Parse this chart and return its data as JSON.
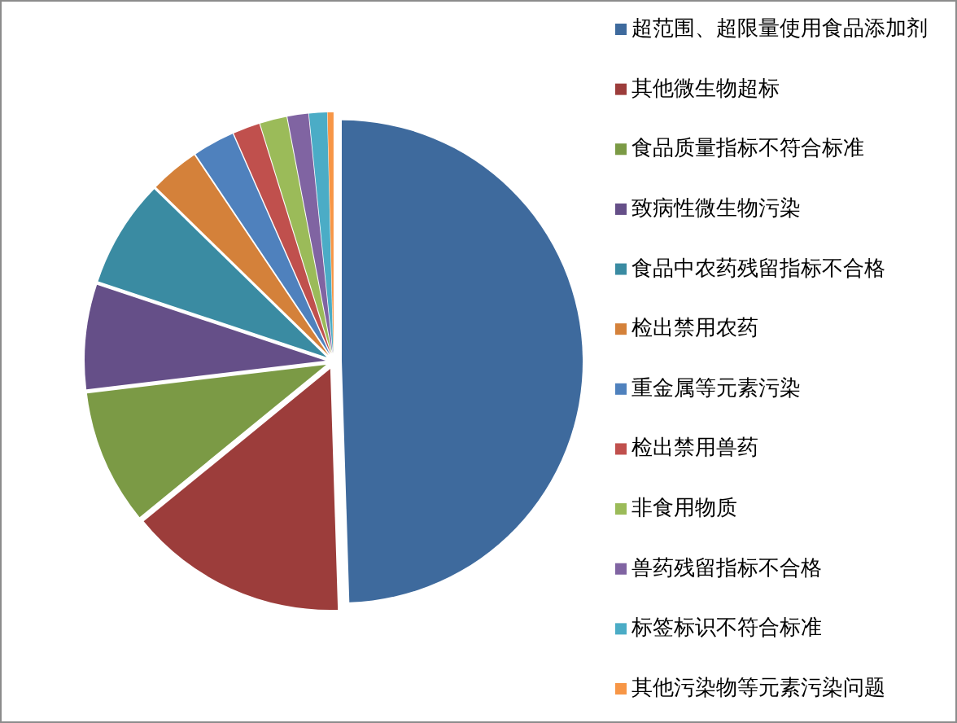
{
  "chart_data": {
    "type": "pie",
    "categories": [
      "超范围、超限量使用食品添加剂",
      "其他微生物超标",
      "食品质量指标不符合标准",
      "致病性微生物污染",
      "食品中农药残留指标不合格",
      "检出禁用农药",
      "重金属等元素污染",
      "检出禁用兽药",
      "非食用物质",
      "兽药残留指标不合格",
      "标签标识不符合标准",
      "其他污染物等元素污染问题"
    ],
    "values": [
      49.5,
      14.6,
      9.0,
      7.0,
      7.2,
      3.3,
      2.8,
      1.8,
      1.8,
      1.4,
      1.2,
      0.4
    ],
    "colors": [
      "#3e6a9d",
      "#9c3d3b",
      "#7b9a45",
      "#654f88",
      "#3a8ba2",
      "#d4813a",
      "#4f81bd",
      "#c0504d",
      "#9bbb59",
      "#8064a2",
      "#4bacc6",
      "#f79646"
    ],
    "legend": "right"
  }
}
